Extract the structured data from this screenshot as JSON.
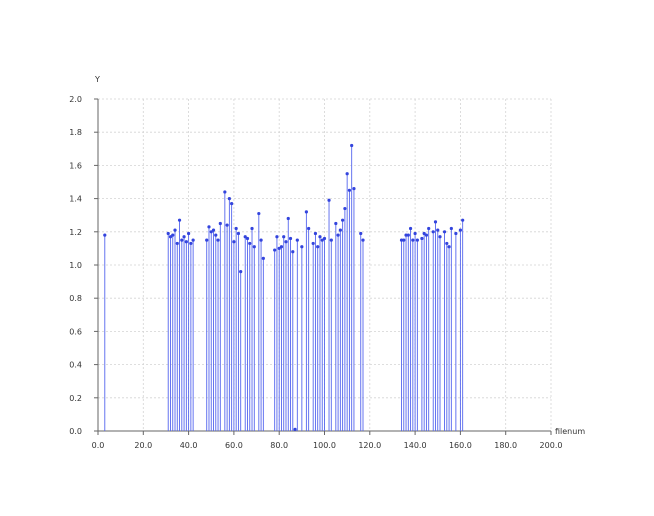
{
  "chart_data": {
    "type": "stem",
    "xlabel": "filenum",
    "ylabel": "Y",
    "xlim": [
      0,
      200
    ],
    "ylim": [
      0,
      2.0
    ],
    "xticks": [
      0,
      20,
      40,
      60,
      80,
      100,
      120,
      140,
      160,
      180,
      200
    ],
    "yticks": [
      0,
      0.2,
      0.4,
      0.6,
      0.8,
      1.0,
      1.2,
      1.4,
      1.6,
      1.8,
      2.0
    ],
    "xtick_labels": [
      "0.0",
      "20.0",
      "40.0",
      "60.0",
      "80.0",
      "100.0",
      "120.0",
      "140.0",
      "160.0",
      "180.0",
      "200.0"
    ],
    "ytick_labels": [
      "0.0",
      "0.2",
      "0.4",
      "0.6",
      "0.8",
      "1.0",
      "1.2",
      "1.4",
      "1.6",
      "1.8",
      "2.0"
    ],
    "grid": true,
    "colors": {
      "stem": "#5566ee",
      "marker": "#3344dd",
      "grid": "#d4d4d4",
      "axis": "#666666"
    },
    "points": [
      [
        3,
        1.18
      ],
      [
        31,
        1.19
      ],
      [
        32,
        1.17
      ],
      [
        33,
        1.18
      ],
      [
        34,
        1.21
      ],
      [
        35,
        1.13
      ],
      [
        36,
        1.27
      ],
      [
        37,
        1.15
      ],
      [
        38,
        1.17
      ],
      [
        39,
        1.14
      ],
      [
        40,
        1.19
      ],
      [
        41,
        1.13
      ],
      [
        42,
        1.15
      ],
      [
        48,
        1.15
      ],
      [
        49,
        1.23
      ],
      [
        50,
        1.2
      ],
      [
        51,
        1.21
      ],
      [
        52,
        1.18
      ],
      [
        53,
        1.15
      ],
      [
        54,
        1.25
      ],
      [
        56,
        1.44
      ],
      [
        57,
        1.24
      ],
      [
        58,
        1.4
      ],
      [
        59,
        1.37
      ],
      [
        60,
        1.14
      ],
      [
        61,
        1.22
      ],
      [
        62,
        1.19
      ],
      [
        63,
        0.96
      ],
      [
        65,
        1.17
      ],
      [
        66,
        1.16
      ],
      [
        67,
        1.13
      ],
      [
        68,
        1.22
      ],
      [
        69,
        1.11
      ],
      [
        71,
        1.31
      ],
      [
        72,
        1.15
      ],
      [
        73,
        1.04
      ],
      [
        78,
        1.09
      ],
      [
        79,
        1.17
      ],
      [
        80,
        1.1
      ],
      [
        81,
        1.11
      ],
      [
        82,
        1.17
      ],
      [
        83,
        1.14
      ],
      [
        84,
        1.28
      ],
      [
        85,
        1.16
      ],
      [
        86,
        1.08
      ],
      [
        87,
        0.01
      ],
      [
        88,
        1.15
      ],
      [
        90,
        1.11
      ],
      [
        92,
        1.32
      ],
      [
        93,
        1.22
      ],
      [
        95,
        1.13
      ],
      [
        96,
        1.19
      ],
      [
        97,
        1.11
      ],
      [
        98,
        1.17
      ],
      [
        99,
        1.15
      ],
      [
        100,
        1.16
      ],
      [
        102,
        1.39
      ],
      [
        103,
        1.15
      ],
      [
        105,
        1.25
      ],
      [
        106,
        1.18
      ],
      [
        107,
        1.21
      ],
      [
        108,
        1.27
      ],
      [
        109,
        1.34
      ],
      [
        110,
        1.55
      ],
      [
        111,
        1.45
      ],
      [
        112,
        1.72
      ],
      [
        113,
        1.46
      ],
      [
        116,
        1.19
      ],
      [
        117,
        1.15
      ],
      [
        134,
        1.15
      ],
      [
        135,
        1.15
      ],
      [
        136,
        1.18
      ],
      [
        137,
        1.18
      ],
      [
        138,
        1.22
      ],
      [
        139,
        1.15
      ],
      [
        140,
        1.19
      ],
      [
        141,
        1.15
      ],
      [
        143,
        1.16
      ],
      [
        144,
        1.19
      ],
      [
        145,
        1.18
      ],
      [
        146,
        1.22
      ],
      [
        148,
        1.2
      ],
      [
        149,
        1.26
      ],
      [
        150,
        1.21
      ],
      [
        151,
        1.17
      ],
      [
        153,
        1.2
      ],
      [
        154,
        1.13
      ],
      [
        155,
        1.11
      ],
      [
        156,
        1.22
      ],
      [
        158,
        1.19
      ],
      [
        160,
        1.21
      ],
      [
        161,
        1.27
      ]
    ]
  }
}
